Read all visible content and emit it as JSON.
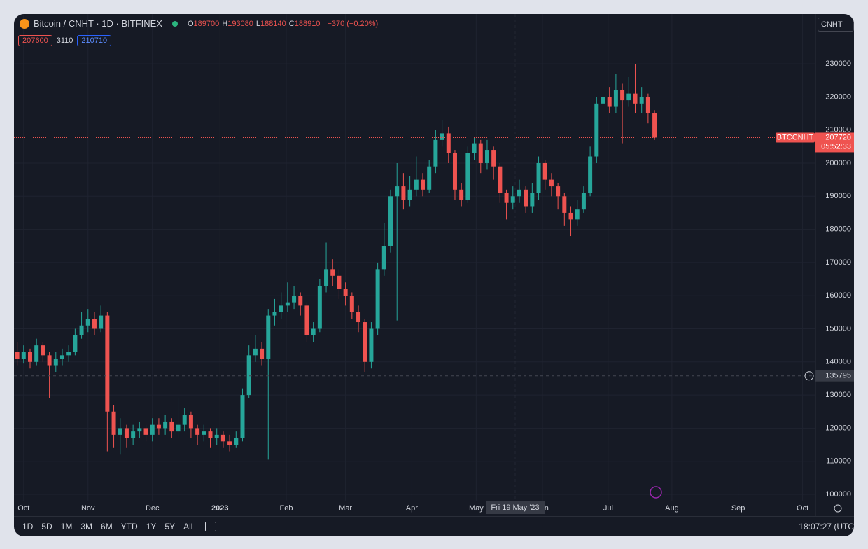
{
  "header": {
    "symbol": "Bitcoin / CNHT · 1D · BITFINEX",
    "ohlc": [
      {
        "label": "O",
        "value": "189700"
      },
      {
        "label": "H",
        "value": "193080"
      },
      {
        "label": "L",
        "value": "188140"
      },
      {
        "label": "C",
        "value": "188910"
      }
    ],
    "change": "−370 (−0.20%)",
    "bid": "207600",
    "spread": "3110",
    "ask": "210710",
    "currency": "CNHT"
  },
  "chart_data": {
    "type": "candlestick",
    "up_color": "#26a69a",
    "down_color": "#ef5350",
    "grid": true,
    "candles": {
      "open": [
        143000,
        141000,
        143000,
        140000,
        145000,
        142000,
        139000,
        141000,
        142000,
        143000,
        148000,
        151000,
        153000,
        150000,
        154000,
        125000,
        118000,
        120000,
        117000,
        119000,
        120000,
        118000,
        121000,
        120000,
        122000,
        119000,
        121000,
        124000,
        120000,
        118000,
        119000,
        117000,
        118000,
        116000,
        115000,
        117000,
        130000,
        142000,
        144000,
        141000,
        154000,
        155000,
        157000,
        158000,
        160000,
        157000,
        148000,
        150000,
        163000,
        168000,
        166000,
        162000,
        160000,
        155000,
        152000,
        140000,
        150000,
        168000,
        175000,
        190000,
        193000,
        189000,
        192000,
        195000,
        192000,
        199000,
        207000,
        209000,
        203000,
        192000,
        189000,
        203000,
        206000,
        200000,
        204000,
        199000,
        191000,
        188000,
        190000,
        192000,
        187000,
        191000,
        200000,
        195000,
        193000,
        190000,
        185000,
        183000,
        186000,
        191000,
        202000,
        218000,
        220000,
        217000,
        222000,
        219000,
        221000,
        218000,
        220000,
        215000
      ],
      "high": [
        146000,
        145000,
        144000,
        147000,
        146000,
        143000,
        143000,
        144000,
        145000,
        150000,
        155000,
        156000,
        155000,
        157000,
        155000,
        127000,
        123000,
        121000,
        121000,
        122000,
        121000,
        123000,
        123000,
        124000,
        123000,
        129000,
        126000,
        125000,
        121000,
        121000,
        120000,
        120000,
        119000,
        118000,
        119000,
        132000,
        145000,
        148000,
        146000,
        156000,
        159000,
        161000,
        164000,
        163000,
        161000,
        158000,
        152000,
        165000,
        176000,
        171000,
        168000,
        164000,
        161000,
        157000,
        153000,
        152000,
        170000,
        182000,
        192000,
        200000,
        197000,
        196000,
        202000,
        197000,
        201000,
        210000,
        213000,
        211000,
        204000,
        194000,
        205000,
        208000,
        207000,
        207000,
        205000,
        200000,
        192000,
        193000,
        195000,
        193000,
        194000,
        202000,
        201000,
        197000,
        194000,
        191000,
        187000,
        189000,
        193000,
        205000,
        220000,
        224000,
        223000,
        227000,
        224000,
        226000,
        230000,
        223000,
        221000,
        216000
      ],
      "low": [
        139000,
        139500,
        138000,
        139000,
        140000,
        129000,
        137000,
        139000,
        140000,
        142000,
        147000,
        149000,
        148000,
        149000,
        113000,
        114000,
        112000,
        114000,
        115000,
        117000,
        116000,
        116000,
        118000,
        118000,
        117000,
        117000,
        119000,
        117000,
        115000,
        116000,
        114000,
        115000,
        114000,
        113000,
        114000,
        116000,
        129000,
        140000,
        139000,
        110500,
        151000,
        153000,
        155000,
        156000,
        154000,
        146000,
        146000,
        149000,
        161000,
        163000,
        159000,
        157000,
        153000,
        149000,
        137000,
        138000,
        148000,
        166000,
        173000,
        152500,
        186000,
        187000,
        190000,
        190000,
        191000,
        197000,
        205000,
        200000,
        189000,
        187000,
        188000,
        201000,
        197000,
        198000,
        195000,
        188000,
        183000,
        186000,
        188000,
        185000,
        185000,
        189000,
        192000,
        190000,
        186000,
        181000,
        178000,
        181000,
        185000,
        190000,
        200000,
        216000,
        215000,
        215000,
        206000,
        217000,
        215000,
        215000,
        212000,
        207000
      ],
      "close": [
        141000,
        143000,
        140000,
        145000,
        142000,
        139000,
        141000,
        142000,
        143000,
        148000,
        151000,
        153000,
        150000,
        154000,
        125000,
        118000,
        120000,
        117000,
        119000,
        120000,
        118000,
        121000,
        120000,
        122000,
        119000,
        121000,
        124000,
        120000,
        118000,
        119000,
        117000,
        118000,
        116000,
        115000,
        117000,
        130000,
        142000,
        144000,
        141000,
        154000,
        155000,
        157000,
        158000,
        160000,
        157000,
        148000,
        150000,
        163000,
        168000,
        166000,
        162000,
        160000,
        155000,
        152000,
        140000,
        150000,
        168000,
        175000,
        190000,
        193000,
        189000,
        192000,
        195000,
        192000,
        199000,
        207000,
        209000,
        203000,
        192000,
        189000,
        203000,
        206000,
        200000,
        204000,
        199000,
        191000,
        188000,
        190000,
        192000,
        187000,
        191000,
        200000,
        195000,
        193000,
        190000,
        185000,
        183000,
        186000,
        191000,
        202000,
        218000,
        220000,
        217000,
        222000,
        219000,
        221000,
        218000,
        220000,
        215000,
        207720
      ]
    },
    "ylim": [
      98100,
      244600
    ],
    "yticks": [
      100000,
      110000,
      120000,
      130000,
      140000,
      150000,
      160000,
      170000,
      180000,
      190000,
      200000,
      210000,
      220000,
      230000
    ],
    "xlim": [
      -0.5,
      124
    ],
    "xticks": [
      {
        "value": 1,
        "label": "Oct"
      },
      {
        "value": 11,
        "label": "Nov"
      },
      {
        "value": 21,
        "label": "Dec"
      },
      {
        "value": 31.5,
        "label": "2023"
      },
      {
        "value": 41.8,
        "label": "Feb"
      },
      {
        "value": 51,
        "label": "Mar"
      },
      {
        "value": 61.3,
        "label": "Apr"
      },
      {
        "value": 71.3,
        "label": "May"
      },
      {
        "value": 81.6,
        "label": "Jun"
      },
      {
        "value": 91.8,
        "label": "Jul"
      },
      {
        "value": 101.7,
        "label": "Aug"
      },
      {
        "value": 112,
        "label": "Sep"
      },
      {
        "value": 122,
        "label": "Oct"
      }
    ],
    "last_price": {
      "symbol": "BTCCNHT",
      "value": 207720,
      "countdown": "05:52:33"
    },
    "crosshair": {
      "price": 135795,
      "date": "Fri 19 May '23"
    }
  },
  "toolbar": {
    "ranges": [
      "1D",
      "5D",
      "1M",
      "3M",
      "6M",
      "YTD",
      "1Y",
      "5Y",
      "All"
    ],
    "clock": "18:07:27 (UTC)"
  }
}
